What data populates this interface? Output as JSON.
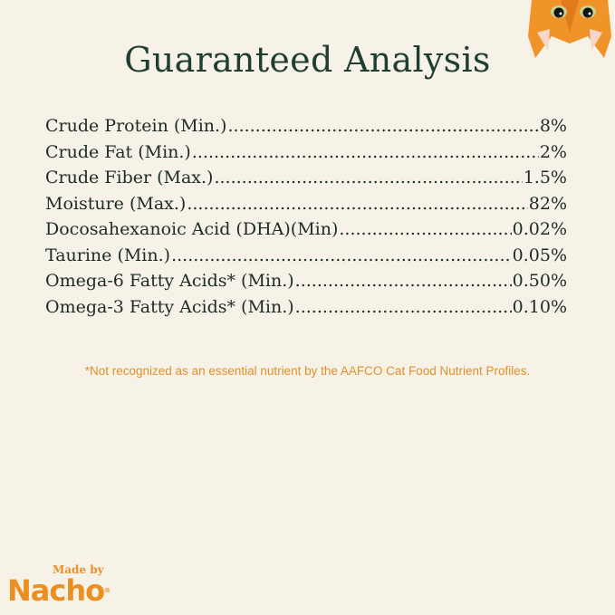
{
  "title": "Guaranteed Analysis",
  "rows": [
    {
      "label": "Crude Protein (Min.)",
      "value": "8%"
    },
    {
      "label": "Crude Fat (Min.)",
      "value": "2%"
    },
    {
      "label": "Crude Fiber (Max.)",
      "value": "1.5%"
    },
    {
      "label": "Moisture (Max.)",
      "value": "82%"
    },
    {
      "label": "Docosahexanoic Acid (DHA)(Min)",
      "value": "0.02%"
    },
    {
      "label": "Taurine (Min.)",
      "value": "0.05%"
    },
    {
      "label": "Omega-6 Fatty Acids* (Min.)",
      "value": "0.50%"
    },
    {
      "label": "Omega-3 Fatty Acids* (Min.)",
      "value": "0.10%"
    }
  ],
  "footnote": "*Not recognized as an essential nutrient by the AAFCO Cat Food Nutrient Profiles.",
  "logo": {
    "made_by": "Made by",
    "brand": "Nacho",
    "reg": "®"
  },
  "colors": {
    "background": "#f7f2e7",
    "title": "#1f3d30",
    "accent": "#ec8f22"
  },
  "icons": {
    "corner": "cat-face-icon"
  }
}
